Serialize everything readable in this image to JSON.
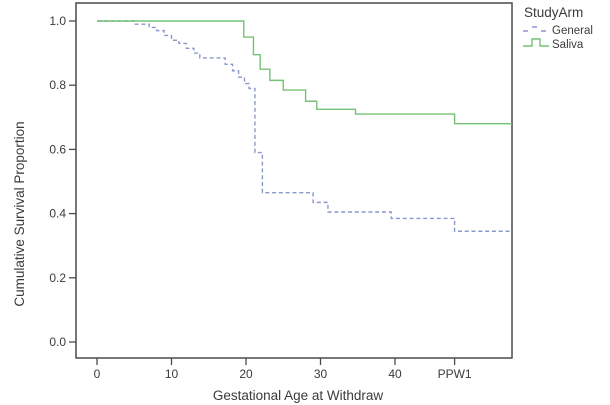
{
  "figure": {
    "background": "#ffffff",
    "plot_border_color": "#4a4a4a",
    "text_color": "#3b3b3b"
  },
  "legend": {
    "title": "StudyArm",
    "position": "top-right",
    "entries": [
      {
        "label": "General",
        "color": "#8a99cc",
        "style": "dashed"
      },
      {
        "label": "Saliva",
        "color": "#74c276",
        "style": "solid"
      }
    ]
  },
  "chart_data": {
    "type": "line",
    "subtype": "kaplan-meier-step",
    "title": "",
    "xlabel": "Gestational Age at Withdraw",
    "ylabel": "Cumulative Survival Proportion",
    "grid": false,
    "legend_position": "top-right-outside",
    "x_ticks": [
      {
        "value": 0,
        "label": "0"
      },
      {
        "value": 10,
        "label": "10"
      },
      {
        "value": 20,
        "label": "20"
      },
      {
        "value": 30,
        "label": "30"
      },
      {
        "value": 40,
        "label": "40"
      },
      {
        "value": 48,
        "label": "PPW1"
      }
    ],
    "y_ticks": [
      {
        "value": 0.0,
        "label": "0.0"
      },
      {
        "value": 0.2,
        "label": "0.2"
      },
      {
        "value": 0.4,
        "label": "0.4"
      },
      {
        "value": 0.6,
        "label": "0.6"
      },
      {
        "value": 0.8,
        "label": "0.8"
      },
      {
        "value": 1.0,
        "label": "1.0"
      }
    ],
    "xlim": [
      -2.8,
      55.7
    ],
    "ylim": [
      -0.05,
      1.056
    ],
    "x_end": 55.7,
    "series": [
      {
        "name": "General",
        "color": "#8a99cc",
        "line_style": "dashed",
        "start": [
          0,
          1.0
        ],
        "steps": [
          [
            5,
            0.99
          ],
          [
            7,
            0.98
          ],
          [
            8,
            0.97
          ],
          [
            9,
            0.955
          ],
          [
            10,
            0.94
          ],
          [
            11,
            0.93
          ],
          [
            12,
            0.915
          ],
          [
            13,
            0.9
          ],
          [
            13.8,
            0.885
          ],
          [
            17.2,
            0.865
          ],
          [
            18.2,
            0.845
          ],
          [
            19,
            0.825
          ],
          [
            19.8,
            0.805
          ],
          [
            20.4,
            0.79
          ],
          [
            21.2,
            0.59
          ],
          [
            22.2,
            0.465
          ],
          [
            29,
            0.435
          ],
          [
            31,
            0.405
          ],
          [
            39.5,
            0.385
          ],
          [
            48,
            0.345
          ]
        ]
      },
      {
        "name": "Saliva",
        "color": "#74c276",
        "line_style": "solid",
        "start": [
          0,
          1.0
        ],
        "steps": [
          [
            19.7,
            0.95
          ],
          [
            21,
            0.895
          ],
          [
            21.9,
            0.85
          ],
          [
            23.2,
            0.815
          ],
          [
            25,
            0.785
          ],
          [
            28,
            0.75
          ],
          [
            29.5,
            0.725
          ],
          [
            34.7,
            0.71
          ],
          [
            48,
            0.68
          ]
        ]
      }
    ]
  }
}
